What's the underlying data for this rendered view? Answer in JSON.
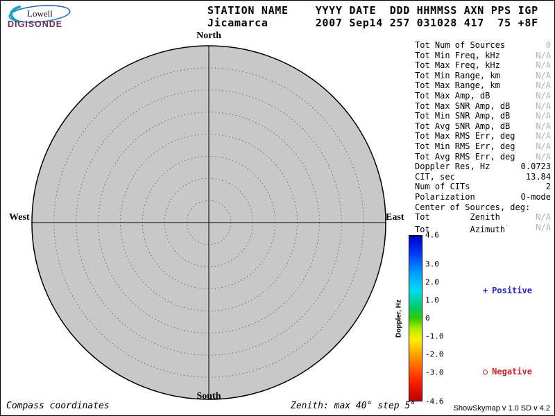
{
  "logo": {
    "brand": "Lowell",
    "product": "DIGISONDE"
  },
  "header": {
    "line1": "STATION NAME    YYYY DATE  DDD HHMMSS AXN PPS IGP",
    "line2": "Jicamarca       2007 Sep14 257 031028 417  75 +8F"
  },
  "compass": {
    "north": "North",
    "south": "South",
    "west": "West",
    "east": "East"
  },
  "stats": {
    "rows": [
      {
        "label": "Tot Num of Sources",
        "value": "0",
        "muted": true
      },
      {
        "label": "Tot Min Freq, kHz",
        "value": "N/A",
        "muted": true
      },
      {
        "label": "Tot Max Freq, kHz",
        "value": "N/A",
        "muted": true
      },
      {
        "label": "Tot Min Range, km",
        "value": "N/A",
        "muted": true
      },
      {
        "label": "Tot Max Range, km",
        "value": "N/A",
        "muted": true
      },
      {
        "label": "Tot Max Amp, dB",
        "value": "N/A",
        "muted": true
      },
      {
        "label": "Tot Max SNR Amp, dB",
        "value": "N/A",
        "muted": true
      },
      {
        "label": "Tot Min SNR Amp, dB",
        "value": "N/A",
        "muted": true
      },
      {
        "label": "Tot Avg SNR Amp, dB",
        "value": "N/A",
        "muted": true
      },
      {
        "label": "Tot Max RMS Err, deg",
        "value": "N/A",
        "muted": true
      },
      {
        "label": "Tot Min RMS Err, deg",
        "value": "N/A",
        "muted": true
      },
      {
        "label": "Tot Avg RMS Err, deg",
        "value": "N/A",
        "muted": true
      },
      {
        "label": "Doppler Res, Hz",
        "value": "0.0723",
        "muted": false
      },
      {
        "label": "CIT, sec",
        "value": "13.84",
        "muted": false
      },
      {
        "label": "Num of CITs",
        "value": "2",
        "muted": false
      },
      {
        "label": "Polarization",
        "value": "O-mode",
        "muted": false
      },
      {
        "label": "Center of Sources, deg:",
        "value": "",
        "muted": false
      },
      {
        "label": "Tot        Zenith",
        "value": "N/A",
        "muted": true
      },
      {
        "label": "Tot        Azimuth",
        "sup": "°",
        "value": "N/A",
        "muted": true
      }
    ]
  },
  "colorbar": {
    "title": "Doppler, Hz",
    "min": -4.6,
    "max": 4.6,
    "ticks": [
      "4.6",
      "3.0",
      "2.0",
      "1.0",
      "0",
      "-1.0",
      "-2.0",
      "-3.0",
      "-4.6"
    ],
    "stops": [
      {
        "o": 0.0,
        "c": "#0000bb"
      },
      {
        "o": 0.1,
        "c": "#0033ff"
      },
      {
        "o": 0.22,
        "c": "#0099ff"
      },
      {
        "o": 0.33,
        "c": "#00ddee"
      },
      {
        "o": 0.44,
        "c": "#00cc66"
      },
      {
        "o": 0.5,
        "c": "#33cc00"
      },
      {
        "o": 0.57,
        "c": "#bbee00"
      },
      {
        "o": 0.63,
        "c": "#ffee00"
      },
      {
        "o": 0.75,
        "c": "#ff8800"
      },
      {
        "o": 0.88,
        "c": "#ff2200"
      },
      {
        "o": 1.0,
        "c": "#bb0000"
      }
    ]
  },
  "legend": {
    "positive": {
      "marker": "+",
      "label": "Positive",
      "color": "#2222cc"
    },
    "negative": {
      "marker": "○",
      "label": "Negative",
      "color": "#cc2222"
    }
  },
  "footer": {
    "left": "Compass coordinates",
    "center": "Zenith: max 40°  step 5°",
    "right": "ShowSkymap v 1.0  SD v 4.2"
  },
  "plot_colors": {
    "disk_fill": "#c8c8c8",
    "disk_stroke": "#000000",
    "ring_stroke": "#6a6a6a"
  },
  "chart_data": {
    "type": "scatter",
    "projection": "polar-skymap",
    "title": "Digisonde skymap — Jicamarca, 2007 Sep14 (day 257) 03:10:28",
    "points": [],
    "num_sources": 0,
    "zenith_max_deg": 40,
    "zenith_step_deg": 5,
    "rings_deg": [
      5,
      10,
      15,
      20,
      25,
      30,
      35,
      40
    ],
    "axes": {
      "top": "North",
      "bottom": "South",
      "left": "West",
      "right": "East"
    },
    "colorbar": {
      "label": "Doppler, Hz",
      "min": -4.6,
      "max": 4.6,
      "ticks": [
        4.6,
        3.0,
        2.0,
        1.0,
        0,
        -1.0,
        -2.0,
        -3.0,
        -4.6
      ]
    },
    "legend": [
      {
        "marker": "+",
        "label": "Positive",
        "color": "#2222cc"
      },
      {
        "marker": "○",
        "label": "Negative",
        "color": "#cc2222"
      }
    ]
  }
}
